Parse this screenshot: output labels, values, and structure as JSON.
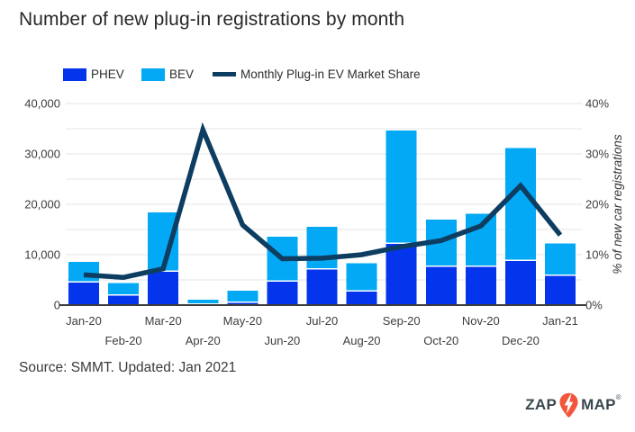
{
  "title": "Number of new plug-in registrations by month",
  "legend": {
    "items": [
      {
        "label": "PHEV",
        "color": "#0435ec",
        "swatch": "box"
      },
      {
        "label": "BEV",
        "color": "#03a9f4",
        "swatch": "box"
      },
      {
        "label": "Monthly Plug-in EV Market Share",
        "color": "#0d3d61",
        "swatch": "line"
      }
    ]
  },
  "footer": {
    "text": "Source: SMMT. Updated: Jan 2021"
  },
  "logo": {
    "prefix": "ZAP",
    "suffix": "MAP",
    "registered": "®",
    "icon": "lightning-pin-icon",
    "icon_color": "#f2573d",
    "text_color": "#3a4750"
  },
  "colors": {
    "grid": "#e4e4e4",
    "axis_line": "#3c3c3c",
    "tick_label": "#3d3d3d",
    "separator": "#ffffff"
  },
  "chart_data": {
    "type": "bar",
    "subtype": "stacked-bars-with-line-overlay",
    "title": "Number of new plug-in registrations by month",
    "categories": [
      "Jan-20",
      "Feb-20",
      "Mar-20",
      "Apr-20",
      "May-20",
      "Jun-20",
      "Jul-20",
      "Aug-20",
      "Sep-20",
      "Oct-20",
      "Nov-20",
      "Dec-20",
      "Jan-21"
    ],
    "series": [
      {
        "name": "PHEV",
        "type": "bar",
        "stack": "registrations",
        "axis": "left",
        "color": "#0435ec",
        "values": [
          4600,
          2000,
          6700,
          200,
          600,
          4800,
          7200,
          2800,
          12300,
          7700,
          7700,
          8900,
          5900
        ]
      },
      {
        "name": "BEV",
        "type": "bar",
        "stack": "registrations",
        "axis": "left",
        "color": "#03a9f4",
        "values": [
          4000,
          2400,
          11700,
          900,
          2300,
          8800,
          8300,
          5500,
          22300,
          9300,
          10400,
          22300,
          6300
        ]
      },
      {
        "name": "Monthly Plug-in EV Market Share",
        "type": "line",
        "axis": "right",
        "color": "#0d3d61",
        "values": [
          6.0,
          5.5,
          7.2,
          34.8,
          15.9,
          9.2,
          9.3,
          10.0,
          11.6,
          12.8,
          15.7,
          23.7,
          13.9
        ]
      }
    ],
    "left_axis": {
      "min": 0,
      "max": 40000,
      "grid_step": 5000,
      "label_step": 10000,
      "tick_labels": [
        "0",
        "10,000",
        "20,000",
        "30,000",
        "40,000"
      ]
    },
    "right_axis": {
      "min": 0,
      "max": 40,
      "grid_step": 5,
      "label_step": 10,
      "tick_labels": [
        "0%",
        "10%",
        "20%",
        "30%",
        "40%"
      ],
      "title": "% of new car registrations"
    },
    "grid": true,
    "legend_position": "top-left",
    "x_label_layout": "staggered-two-rows"
  }
}
